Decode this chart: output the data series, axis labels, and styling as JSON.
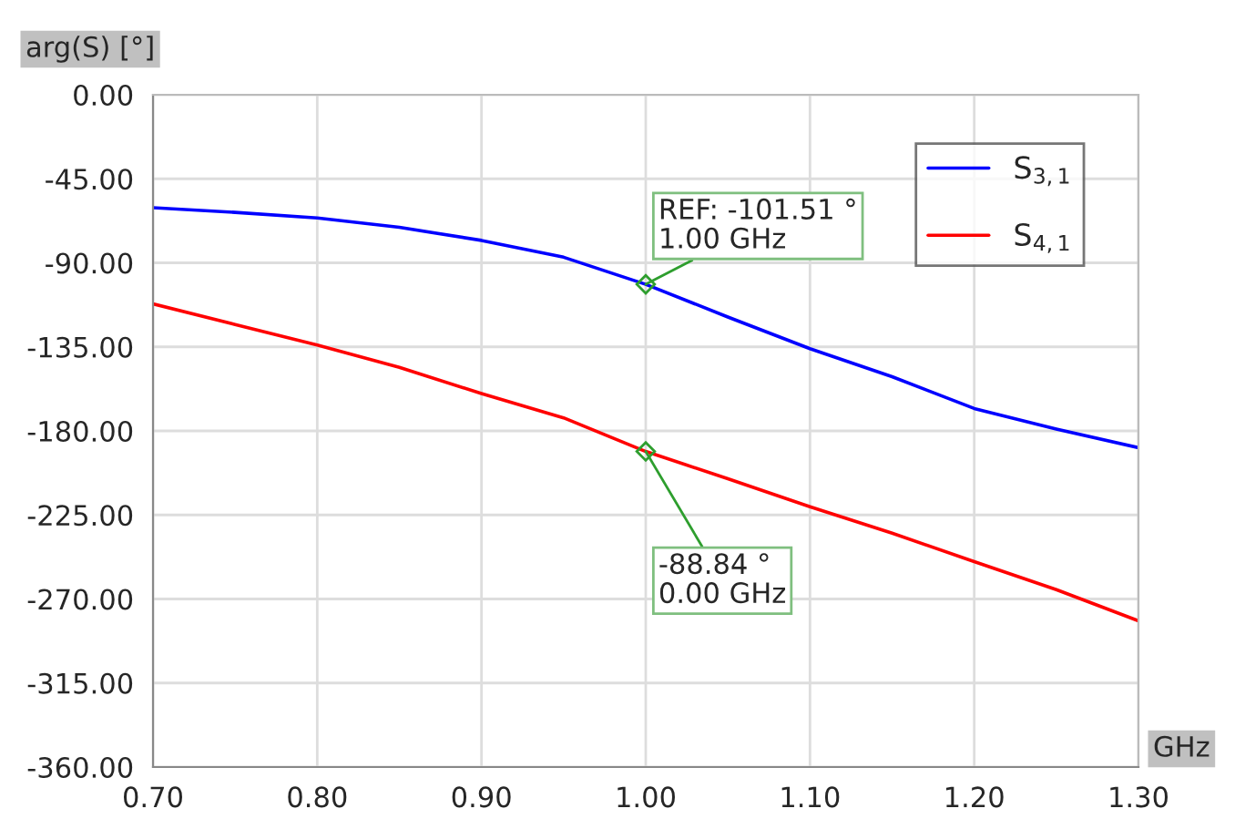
{
  "chart_data": {
    "type": "line",
    "xlabel": "GHz",
    "ylabel": "arg(S) [°]",
    "x": [
      0.7,
      0.75,
      0.8,
      0.85,
      0.9,
      0.95,
      1.0,
      1.05,
      1.1,
      1.15,
      1.2,
      1.25,
      1.3
    ],
    "series": [
      {
        "name": "S$_{3,1}$",
        "color": "#0000ff",
        "values": [
          -60.5,
          -63,
          -66,
          -71,
          -78,
          -87,
          -101.51,
          -119,
          -136,
          -151,
          -168,
          -179,
          -189
        ]
      },
      {
        "name": "S$_{4,1}$",
        "color": "#ff0000",
        "values": [
          -112,
          -123,
          -134,
          -146,
          -160,
          -173,
          -191,
          -205.6,
          -220.6,
          -234.8,
          -250,
          -265,
          -281.7
        ]
      }
    ],
    "xlim": [
      0.7,
      1.3
    ],
    "xticks": [
      {
        "value": 0.7,
        "label": "0.70"
      },
      {
        "value": 0.8,
        "label": "0.80"
      },
      {
        "value": 0.9,
        "label": "0.90"
      },
      {
        "value": 1.0,
        "label": "1.00"
      },
      {
        "value": 1.1,
        "label": "1.10"
      },
      {
        "value": 1.2,
        "label": "1.20"
      },
      {
        "value": 1.3,
        "label": "1.30"
      }
    ],
    "ylim": [
      -360,
      0
    ],
    "yticks": [
      {
        "value": 0,
        "label": "0.00"
      },
      {
        "value": -45,
        "label": "-45.00"
      },
      {
        "value": -90,
        "label": "-90.00"
      },
      {
        "value": -135,
        "label": "-135.00"
      },
      {
        "value": -180,
        "label": "-180.00"
      },
      {
        "value": -225,
        "label": "-225.00"
      },
      {
        "value": -270,
        "label": "-270.00"
      },
      {
        "value": -315,
        "label": "-315.00"
      },
      {
        "value": -360,
        "label": "-360.00"
      }
    ],
    "annotations": [
      {
        "text": "REF: -101.51 °\n1.00 GHz",
        "x": 1.0,
        "y": -101.51
      },
      {
        "text": "-88.84 °\n0.00 GHz",
        "x": 1.0,
        "y": -191
      }
    ],
    "grid": true,
    "legend": "top right",
    "line_style": "solid"
  }
}
